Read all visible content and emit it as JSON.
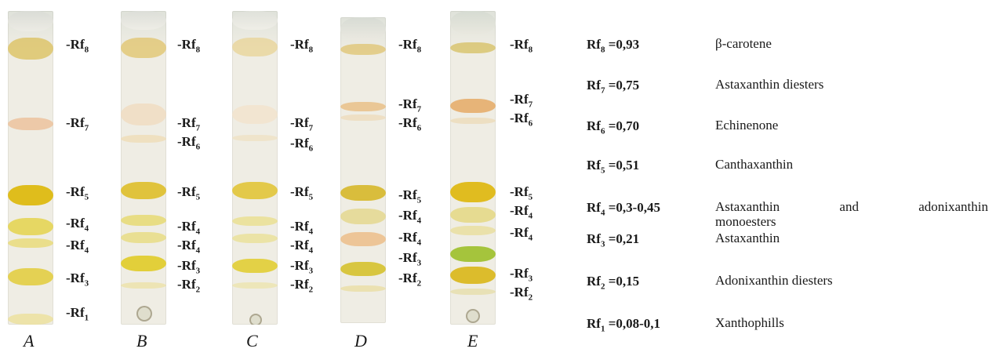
{
  "lanes": [
    "A",
    "B",
    "C",
    "D",
    "E"
  ],
  "lane_labels": {
    "A": [
      "-Rf",
      "8",
      "-Rf",
      "7",
      "-Rf",
      "5",
      "-Rf",
      "4",
      "-Rf",
      "4",
      "-Rf",
      "3",
      "-Rf",
      "1"
    ],
    "B": [
      "-Rf",
      "8",
      "-Rf",
      "7",
      "-Rf",
      "6",
      "-Rf",
      "5",
      "-Rf",
      "4",
      "-Rf",
      "4",
      "-Rf",
      "3",
      "-Rf",
      "2"
    ],
    "C": [
      "-Rf",
      "8",
      "-Rf",
      "7",
      "-Rf",
      "6",
      "-Rf",
      "5",
      "-Rf",
      "4",
      "-Rf",
      "4",
      "-Rf",
      "3",
      "-Rf",
      "2"
    ],
    "D": [
      "-Rf",
      "8",
      "-Rf",
      "7",
      "-Rf",
      "6",
      "-Rf",
      "5",
      "-Rf",
      "4",
      "-Rf",
      "4",
      "-Rf",
      "3",
      "-Rf",
      "2"
    ],
    "E": [
      "-Rf",
      "8",
      "-Rf",
      "7",
      "-Rf",
      "6",
      "-Rf",
      "5",
      "-Rf",
      "4",
      "-Rf",
      "4",
      "-Rf",
      "3",
      "-Rf",
      "2"
    ]
  },
  "legend": [
    {
      "rf": "Rf",
      "sub": "8",
      "value": " =0,93",
      "compound": "β-carotene"
    },
    {
      "rf": "Rf",
      "sub": "7",
      "value": " =0,75",
      "compound": "Astaxanthin diesters"
    },
    {
      "rf": "Rf",
      "sub": "6",
      "value": " =0,70",
      "compound": "Echinenone"
    },
    {
      "rf": "Rf",
      "sub": "5",
      "value": " =0,51",
      "compound": "Canthaxanthin"
    },
    {
      "rf": "Rf",
      "sub": "4",
      "value": " =0,3-0,45",
      "compound_line1": "Astaxanthin and adonixanthin",
      "compound_line2": "monoesters"
    },
    {
      "rf": "Rf",
      "sub": "3",
      "value": " =0,21",
      "compound": "Astaxanthin"
    },
    {
      "rf": "Rf",
      "sub": "2",
      "value": " =0,15",
      "compound": "Adonixanthin diesters"
    },
    {
      "rf": "Rf",
      "sub": "1",
      "value": " =0,08-0,1",
      "compound": "Xanthophills"
    }
  ],
  "colors": {
    "strip_top": "#dfe2da",
    "strip_body": "#efede4",
    "yellow": "#e3c93a",
    "orange": "#eab68a",
    "green": "#a7c43a",
    "text": "#1a1a1a"
  }
}
